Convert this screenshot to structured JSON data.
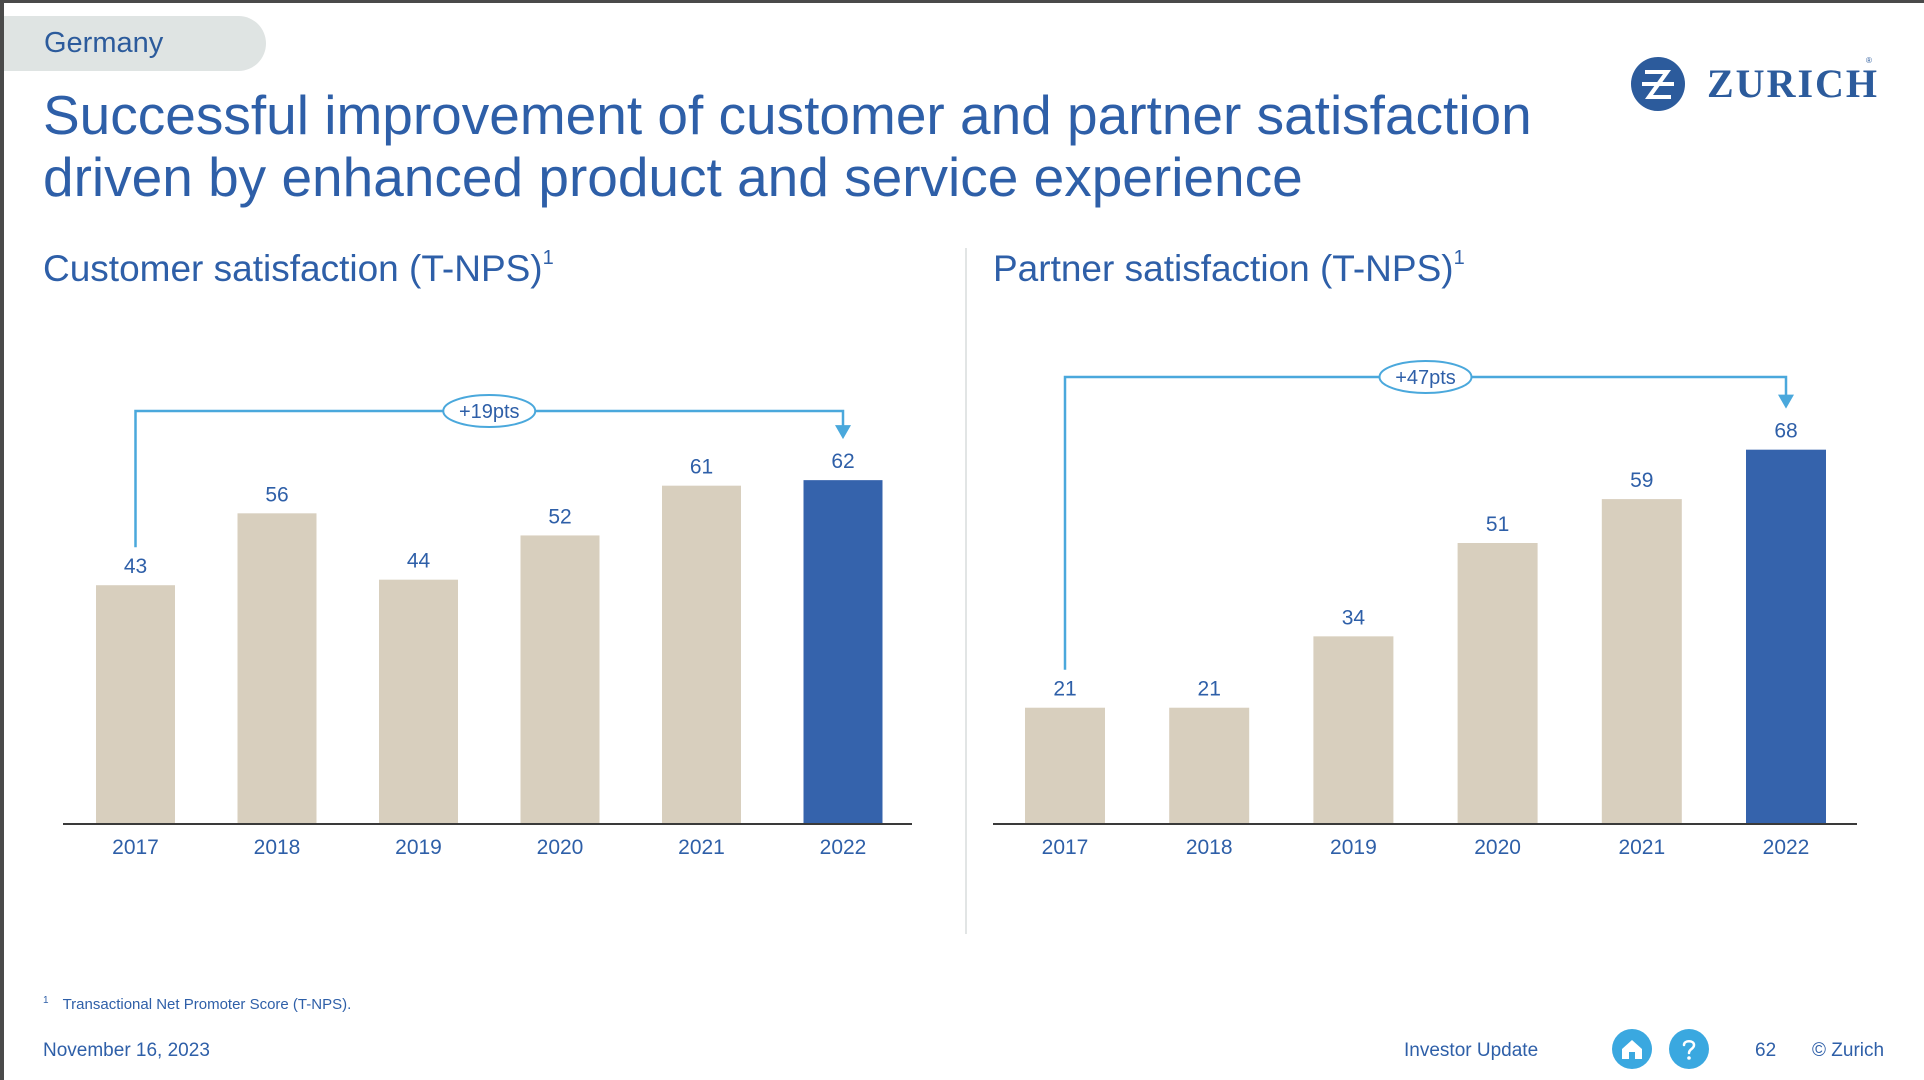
{
  "region": "Germany",
  "brand": {
    "name": "ZURICH",
    "reg": "®",
    "color": "#2c5b9c"
  },
  "title_lines": [
    "Successful improvement of customer and partner satisfaction",
    "driven by enhanced product and service experience"
  ],
  "colors": {
    "bar": "#d8cfbe",
    "highlight": "#3563ac",
    "arrow": "#4aa8dc",
    "text": "#2e5fa8",
    "axis": "#3a3a3a"
  },
  "chart_data": [
    {
      "type": "bar",
      "title": "Customer satisfaction (T-NPS)",
      "title_sup": "1",
      "categories": [
        "2017",
        "2018",
        "2019",
        "2020",
        "2021",
        "2022"
      ],
      "values": [
        43,
        56,
        44,
        52,
        61,
        62
      ],
      "highlight_index": 5,
      "annotation": {
        "text": "+19pts",
        "from": "2017",
        "to": "2022"
      },
      "ylim": [
        0,
        100
      ],
      "grid": false,
      "xlabel": "",
      "ylabel": ""
    },
    {
      "type": "bar",
      "title": "Partner satisfaction (T-NPS)",
      "title_sup": "1",
      "categories": [
        "2017",
        "2018",
        "2019",
        "2020",
        "2021",
        "2022"
      ],
      "values": [
        21,
        21,
        34,
        51,
        59,
        68
      ],
      "highlight_index": 5,
      "annotation": {
        "text": "+47pts",
        "from": "2017",
        "to": "2022"
      },
      "ylim": [
        0,
        100
      ],
      "grid": false,
      "xlabel": "",
      "ylabel": ""
    }
  ],
  "footnote": {
    "marker": "1",
    "text": "Transactional Net Promoter Score (T-NPS)."
  },
  "footer": {
    "date": "November 16, 2023",
    "label": "Investor Update",
    "page": "62",
    "copyright": "© Zurich",
    "home_icon": "home-icon",
    "help_icon": "help-icon"
  }
}
